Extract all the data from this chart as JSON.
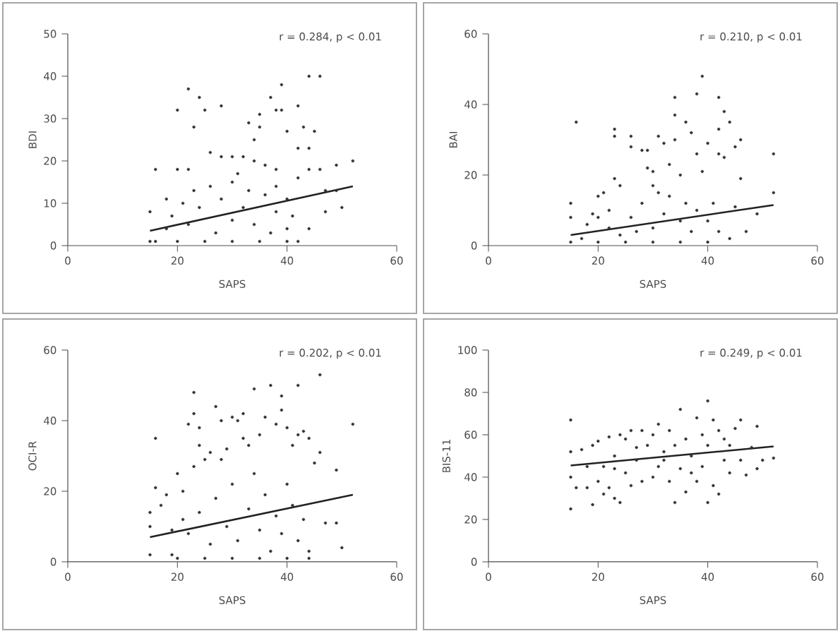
{
  "chart_data": [
    {
      "type": "scatter",
      "xlabel": "SAPS",
      "ylabel": "BDI",
      "xlim": [
        0,
        60
      ],
      "ylim": [
        0,
        50
      ],
      "xticks": [
        0,
        20,
        40,
        60
      ],
      "yticks": [
        0,
        10,
        20,
        30,
        40,
        50
      ],
      "annotations": [
        "r = 0.284, p < 0.01"
      ],
      "series": [
        {
          "marker": "circle",
          "color": "#333333",
          "x": [
            20,
            22,
            23,
            24,
            25,
            28,
            33,
            34,
            35,
            35,
            37,
            38,
            39,
            39,
            40,
            42,
            43,
            44,
            46,
            45,
            52,
            49,
            50,
            47,
            16,
            15,
            15,
            16,
            18,
            20,
            22,
            26,
            28,
            30,
            32,
            34,
            36,
            38,
            42,
            44,
            44,
            46,
            47,
            49,
            44,
            20,
            25,
            30,
            35,
            40,
            42,
            18,
            22,
            24,
            26,
            28,
            30,
            30,
            32,
            33,
            34,
            36,
            38,
            38,
            40,
            40,
            42,
            41,
            27,
            23,
            19,
            21,
            31,
            37
          ],
          "values": [
            32,
            37,
            28,
            35,
            32,
            33,
            29,
            25,
            28,
            31,
            35,
            32,
            38,
            32,
            27,
            33,
            28,
            40,
            40,
            27,
            20,
            19,
            9,
            8,
            18,
            8,
            1,
            1,
            11,
            18,
            18,
            22,
            21,
            21,
            21,
            20,
            19,
            18,
            23,
            23,
            18,
            18,
            13,
            13,
            4,
            1,
            1,
            1,
            1,
            1,
            1,
            4,
            5,
            9,
            14,
            11,
            6,
            15,
            9,
            13,
            5,
            12,
            8,
            14,
            4,
            11,
            16,
            7,
            3,
            13,
            7,
            10,
            17,
            3
          ]
        },
        {
          "type": "line",
          "marker": "none",
          "color": "#222222",
          "x": [
            15,
            52
          ],
          "values": [
            3.5,
            14
          ]
        }
      ]
    },
    {
      "type": "scatter",
      "xlabel": "SAPS",
      "ylabel": "BAI",
      "xlim": [
        0,
        60
      ],
      "ylim": [
        0,
        60
      ],
      "xticks": [
        0,
        20,
        40,
        60
      ],
      "yticks": [
        0,
        20,
        40,
        60
      ],
      "annotations": [
        "r = 0.210, p < 0.01"
      ],
      "series": [
        {
          "marker": "circle",
          "color": "#333333",
          "x": [
            16,
            15,
            15,
            15,
            17,
            20,
            20,
            21,
            22,
            23,
            23,
            23,
            24,
            26,
            26,
            28,
            29,
            29,
            30,
            30,
            31,
            32,
            33,
            34,
            34,
            34,
            35,
            36,
            37,
            38,
            38,
            39,
            39,
            40,
            42,
            42,
            42,
            43,
            43,
            44,
            45,
            46,
            46,
            47,
            49,
            52,
            52,
            45,
            44,
            40,
            35,
            30,
            25,
            20,
            18,
            22,
            24,
            26,
            28,
            30,
            32,
            33,
            35,
            36,
            37,
            38,
            40,
            41,
            42,
            27,
            19,
            31
          ],
          "values": [
            35,
            12,
            8,
            1,
            2,
            14,
            8,
            15,
            5,
            33,
            31,
            19,
            17,
            31,
            28,
            27,
            27,
            22,
            21,
            17,
            31,
            29,
            23,
            42,
            37,
            30,
            20,
            35,
            32,
            43,
            26,
            48,
            21,
            29,
            42,
            33,
            26,
            38,
            25,
            35,
            28,
            30,
            19,
            4,
            9,
            26,
            15,
            11,
            2,
            1,
            1,
            1,
            1,
            1,
            6,
            10,
            3,
            8,
            12,
            5,
            9,
            14,
            7,
            12,
            4,
            10,
            7,
            12,
            4,
            4,
            9,
            15
          ]
        },
        {
          "type": "line",
          "marker": "none",
          "color": "#222222",
          "x": [
            15,
            52
          ],
          "values": [
            3,
            11.5
          ]
        }
      ]
    },
    {
      "type": "scatter",
      "xlabel": "SAPS",
      "ylabel": "OCI-R",
      "xlim": [
        0,
        60
      ],
      "ylim": [
        0,
        60
      ],
      "xticks": [
        0,
        20,
        40,
        60
      ],
      "yticks": [
        0,
        20,
        40,
        60
      ],
      "annotations": [
        "r = 0.202, p < 0.01"
      ],
      "series": [
        {
          "marker": "circle",
          "color": "#333333",
          "x": [
            15,
            15,
            15,
            16,
            16,
            17,
            18,
            19,
            20,
            21,
            22,
            23,
            23,
            23,
            24,
            24,
            25,
            26,
            27,
            28,
            28,
            29,
            30,
            31,
            32,
            32,
            33,
            34,
            35,
            36,
            37,
            38,
            39,
            39,
            40,
            41,
            42,
            42,
            43,
            44,
            45,
            46,
            46,
            47,
            49,
            49,
            50,
            52,
            44,
            44,
            40,
            35,
            30,
            25,
            20,
            22,
            24,
            26,
            27,
            29,
            30,
            31,
            33,
            34,
            35,
            36,
            37,
            38,
            39,
            40,
            41,
            42,
            43,
            21,
            19
          ],
          "values": [
            14,
            10,
            2,
            35,
            21,
            16,
            19,
            2,
            25,
            20,
            39,
            42,
            48,
            27,
            38,
            33,
            29,
            31,
            44,
            40,
            29,
            32,
            41,
            40,
            42,
            35,
            33,
            49,
            36,
            41,
            50,
            39,
            47,
            43,
            38,
            33,
            50,
            36,
            37,
            35,
            28,
            53,
            31,
            11,
            26,
            11,
            4,
            39,
            3,
            1,
            1,
            1,
            1,
            1,
            1,
            8,
            14,
            5,
            18,
            10,
            22,
            6,
            15,
            25,
            9,
            19,
            3,
            13,
            8,
            22,
            16,
            6,
            12,
            12,
            9
          ]
        },
        {
          "type": "line",
          "marker": "none",
          "color": "#222222",
          "x": [
            15,
            52
          ],
          "values": [
            7,
            19
          ]
        }
      ]
    },
    {
      "type": "scatter",
      "xlabel": "SAPS",
      "ylabel": "BIS-11",
      "xlim": [
        0,
        60
      ],
      "ylim": [
        0,
        100
      ],
      "xticks": [
        0,
        20,
        40,
        60
      ],
      "yticks": [
        0,
        20,
        40,
        60,
        80,
        100
      ],
      "annotations": [
        "r = 0.249, p < 0.01"
      ],
      "series": [
        {
          "marker": "circle",
          "color": "#333333",
          "x": [
            15,
            15,
            15,
            15,
            16,
            17,
            18,
            18,
            19,
            19,
            20,
            20,
            21,
            21,
            22,
            22,
            23,
            23,
            24,
            24,
            25,
            25,
            26,
            26,
            27,
            28,
            28,
            29,
            30,
            30,
            31,
            31,
            32,
            33,
            33,
            34,
            34,
            35,
            35,
            36,
            36,
            37,
            38,
            38,
            39,
            39,
            40,
            40,
            40,
            41,
            41,
            42,
            42,
            43,
            43,
            44,
            45,
            46,
            46,
            47,
            48,
            49,
            49,
            50,
            52,
            44,
            37,
            32,
            27,
            23
          ],
          "values": [
            67,
            25,
            52,
            40,
            35,
            53,
            45,
            35,
            27,
            55,
            38,
            57,
            45,
            32,
            59,
            35,
            50,
            30,
            60,
            28,
            42,
            58,
            62,
            36,
            48,
            62,
            38,
            55,
            60,
            40,
            65,
            45,
            52,
            62,
            38,
            28,
            55,
            72,
            44,
            58,
            33,
            50,
            68,
            38,
            60,
            45,
            76,
            28,
            55,
            67,
            36,
            62,
            32,
            48,
            58,
            55,
            63,
            67,
            48,
            41,
            54,
            64,
            44,
            48,
            49,
            42,
            42,
            48,
            54,
            44
          ]
        },
        {
          "type": "line",
          "marker": "none",
          "color": "#222222",
          "x": [
            15,
            52
          ],
          "values": [
            45.5,
            54.5
          ]
        }
      ]
    }
  ]
}
